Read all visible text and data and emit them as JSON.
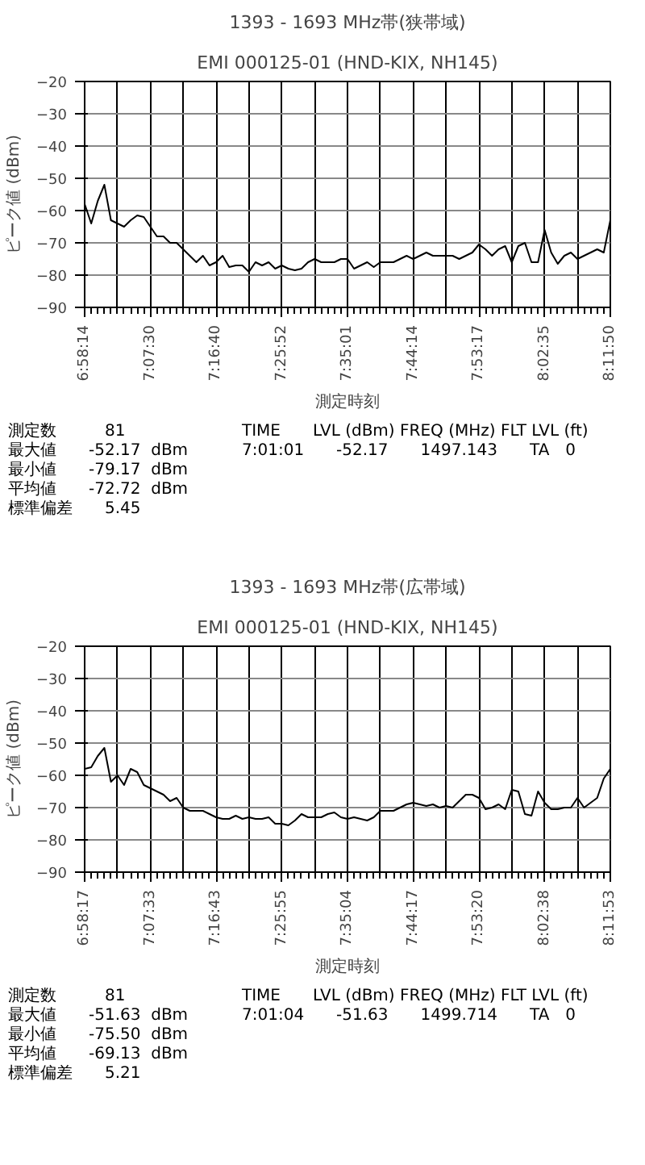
{
  "chart_data": [
    {
      "type": "line",
      "title": "1393 - 1693 MHz帯(狭帯域)",
      "subtitle": "EMI 000125-01 (HND-KIX, NH145)",
      "xlabel": "測定時刻",
      "ylabel": "ピーク値 (dBm)",
      "categories": [
        "6:58:14",
        null,
        null,
        null,
        null,
        null,
        null,
        null,
        null,
        null,
        "7:07:30",
        null,
        null,
        null,
        null,
        null,
        null,
        null,
        null,
        null,
        "7:16:40",
        null,
        null,
        null,
        null,
        null,
        null,
        null,
        null,
        null,
        "7:25:52",
        null,
        null,
        null,
        null,
        null,
        null,
        null,
        null,
        null,
        "7:35:01",
        null,
        null,
        null,
        null,
        null,
        null,
        null,
        null,
        null,
        "7:44:14",
        null,
        null,
        null,
        null,
        null,
        null,
        null,
        null,
        null,
        "7:53:17",
        null,
        null,
        null,
        null,
        null,
        null,
        null,
        null,
        null,
        "8:02:35",
        null,
        null,
        null,
        null,
        null,
        null,
        null,
        null,
        null,
        "8:11:50"
      ],
      "series": [
        {
          "color": "#000000",
          "values": [
            -58,
            -64,
            -57,
            -52,
            -63,
            -64,
            -65,
            -63,
            -61.5,
            -62,
            -65,
            -68,
            -68,
            -70,
            -70,
            -72,
            -74,
            -76,
            -74,
            -77,
            -76,
            -74,
            -77.5,
            -77,
            -77,
            -79,
            -76,
            -77,
            -76,
            -78,
            -77,
            -78,
            -78.5,
            -78,
            -76,
            -75,
            -76,
            -76,
            -76,
            -75,
            -75,
            -78,
            -77,
            -76,
            -77.5,
            -76,
            -76,
            -76,
            -75,
            -74,
            -75,
            -74,
            -73,
            -74,
            -74,
            -74,
            -74,
            -75,
            -74,
            -73,
            -70.5,
            -72,
            -74,
            -72,
            -71,
            -76,
            -71,
            -70,
            -76,
            -76,
            -66,
            -73,
            -76.5,
            -74,
            -73,
            -75,
            -74,
            -73,
            -72,
            -73,
            -63
          ]
        }
      ],
      "ylim": [
        -90,
        -20
      ],
      "yticks": [
        -90,
        -80,
        -70,
        -60,
        -50,
        -40,
        -30,
        -20
      ],
      "grid": true,
      "marker": "none",
      "line_style": "solid",
      "annotations": [
        "測定数　　　81",
        "最大値　　-52.17  dBm",
        "最小値　　-79.17  dBm",
        "平均値　　-72.72  dBm",
        "標準偏差　　5.45",
        "TIME　　LVL (dBm) FREQ (MHz) FLT LVL (ft)",
        "7:01:01　　-52.17　　1497.143　　TA　0"
      ]
    },
    {
      "type": "line",
      "title": "1393 - 1693 MHz帯(広帯域)",
      "subtitle": "EMI 000125-01 (HND-KIX, NH145)",
      "xlabel": "測定時刻",
      "ylabel": "ピーク値 (dBm)",
      "categories": [
        "6:58:17",
        null,
        null,
        null,
        null,
        null,
        null,
        null,
        null,
        null,
        "7:07:33",
        null,
        null,
        null,
        null,
        null,
        null,
        null,
        null,
        null,
        "7:16:43",
        null,
        null,
        null,
        null,
        null,
        null,
        null,
        null,
        null,
        "7:25:55",
        null,
        null,
        null,
        null,
        null,
        null,
        null,
        null,
        null,
        "7:35:04",
        null,
        null,
        null,
        null,
        null,
        null,
        null,
        null,
        null,
        "7:44:17",
        null,
        null,
        null,
        null,
        null,
        null,
        null,
        null,
        null,
        "7:53:20",
        null,
        null,
        null,
        null,
        null,
        null,
        null,
        null,
        null,
        "8:02:38",
        null,
        null,
        null,
        null,
        null,
        null,
        null,
        null,
        null,
        "8:11:53"
      ],
      "series": [
        {
          "color": "#000000",
          "values": [
            -58,
            -57.5,
            -54,
            -51.5,
            -62,
            -60,
            -63,
            -58,
            -59,
            -63,
            -64,
            -65,
            -66,
            -68,
            -67,
            -70,
            -71,
            -71,
            -71,
            -72,
            -73,
            -73.5,
            -73.5,
            -72.5,
            -73.5,
            -73,
            -73.5,
            -73.5,
            -73,
            -75,
            -75,
            -75.5,
            -74,
            -72,
            -73,
            -73,
            -73,
            -72,
            -71.5,
            -73,
            -73.5,
            -73,
            -73.5,
            -74,
            -73,
            -71,
            -71,
            -71,
            -70,
            -69,
            -68.5,
            -69,
            -69.5,
            -69,
            -70,
            -69.5,
            -70,
            -68,
            -66,
            -66,
            -67,
            -70.5,
            -70,
            -69,
            -70.5,
            -64.5,
            -65,
            -72,
            -72.5,
            -65,
            -68.5,
            -70.5,
            -70.5,
            -70,
            -70,
            -67,
            -70,
            -68.5,
            -67,
            -61,
            -58
          ]
        }
      ],
      "ylim": [
        -90,
        -20
      ],
      "yticks": [
        -90,
        -80,
        -70,
        -60,
        -50,
        -40,
        -30,
        -20
      ],
      "grid": true,
      "marker": "none",
      "line_style": "solid",
      "annotations": [
        "測定数　　　81",
        "最大値　　-51.63  dBm",
        "最小値　　-75.50  dBm",
        "平均値　　-69.13  dBm",
        "標準偏差　　5.21",
        "TIME　　LVL (dBm) FREQ (MHz) FLT LVL (ft)",
        "7:01:04　　-51.63　　1499.714　　TA　0"
      ]
    }
  ]
}
